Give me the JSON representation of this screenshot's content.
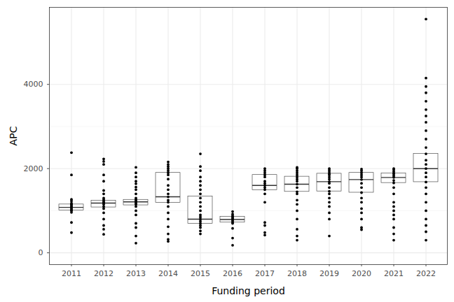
{
  "chart_data": {
    "type": "box",
    "x_label": "Funding period",
    "y_label": "APC",
    "categories": [
      "2011",
      "2012",
      "2013",
      "2014",
      "2015",
      "2016",
      "2017",
      "2018",
      "2019",
      "2020",
      "2021",
      "2022"
    ],
    "boxes": [
      {
        "q1": 1010,
        "median": 1080,
        "q3": 1150
      },
      {
        "q1": 1080,
        "median": 1180,
        "q3": 1240
      },
      {
        "q1": 1130,
        "median": 1210,
        "q3": 1260
      },
      {
        "q1": 1190,
        "median": 1330,
        "q3": 1900
      },
      {
        "q1": 690,
        "median": 800,
        "q3": 1340
      },
      {
        "q1": 720,
        "median": 790,
        "q3": 860
      },
      {
        "q1": 1490,
        "median": 1600,
        "q3": 1850
      },
      {
        "q1": 1450,
        "median": 1630,
        "q3": 1810
      },
      {
        "q1": 1460,
        "median": 1690,
        "q3": 1880
      },
      {
        "q1": 1430,
        "median": 1740,
        "q3": 1900
      },
      {
        "q1": 1660,
        "median": 1790,
        "q3": 1890
      },
      {
        "q1": 1680,
        "median": 2000,
        "q3": 2350
      }
    ],
    "points": [
      [
        480,
        720,
        960,
        1000,
        1020,
        1050,
        1080,
        1100,
        1130,
        1150,
        1180,
        1230,
        1270,
        1850,
        2380
      ],
      [
        440,
        560,
        650,
        800,
        950,
        1050,
        1100,
        1150,
        1180,
        1200,
        1230,
        1260,
        1300,
        1400,
        1480,
        1700,
        1850,
        2100,
        2170,
        2230
      ],
      [
        230,
        400,
        600,
        700,
        900,
        1000,
        1100,
        1150,
        1180,
        1210,
        1240,
        1260,
        1300,
        1400,
        1500,
        1560,
        1640,
        1700,
        1800,
        1900,
        2030
      ],
      [
        270,
        320,
        450,
        620,
        800,
        950,
        1100,
        1200,
        1250,
        1330,
        1400,
        1500,
        1600,
        1750,
        1850,
        1900,
        1950,
        2000,
        2050,
        2100,
        2160
      ],
      [
        450,
        520,
        600,
        650,
        700,
        750,
        800,
        850,
        900,
        1000,
        1100,
        1200,
        1300,
        1400,
        1500,
        1600,
        1700,
        1800,
        1950,
        2050,
        2350
      ],
      [
        180,
        350,
        580,
        700,
        730,
        760,
        790,
        820,
        850,
        880,
        920,
        980
      ],
      [
        420,
        480,
        650,
        720,
        1200,
        1400,
        1500,
        1550,
        1600,
        1650,
        1700,
        1800,
        1850,
        1900,
        1950,
        2000
      ],
      [
        300,
        400,
        560,
        800,
        1000,
        1150,
        1250,
        1400,
        1450,
        1550,
        1630,
        1700,
        1750,
        1800,
        1850,
        1900,
        1950,
        2000,
        2030
      ],
      [
        400,
        800,
        950,
        1100,
        1200,
        1300,
        1400,
        1460,
        1550,
        1650,
        1690,
        1750,
        1800,
        1850,
        1880,
        1920,
        1960,
        2000
      ],
      [
        550,
        600,
        800,
        950,
        1050,
        1200,
        1300,
        1430,
        1550,
        1650,
        1740,
        1800,
        1850,
        1900,
        1950,
        1990
      ],
      [
        300,
        450,
        600,
        800,
        900,
        1000,
        1100,
        1200,
        1400,
        1550,
        1660,
        1720,
        1790,
        1830,
        1870,
        1890,
        1930,
        1970,
        2000
      ],
      [
        300,
        500,
        650,
        800,
        1000,
        1200,
        1400,
        1550,
        1680,
        1800,
        1900,
        2000,
        2100,
        2200,
        2350,
        2500,
        2700,
        2900,
        3100,
        3250,
        3400,
        3600,
        3800,
        3950,
        4150,
        5550
      ]
    ],
    "ylim": [
      -280,
      5830
    ],
    "yticks": [
      0,
      2000,
      4000
    ],
    "grid": true
  }
}
